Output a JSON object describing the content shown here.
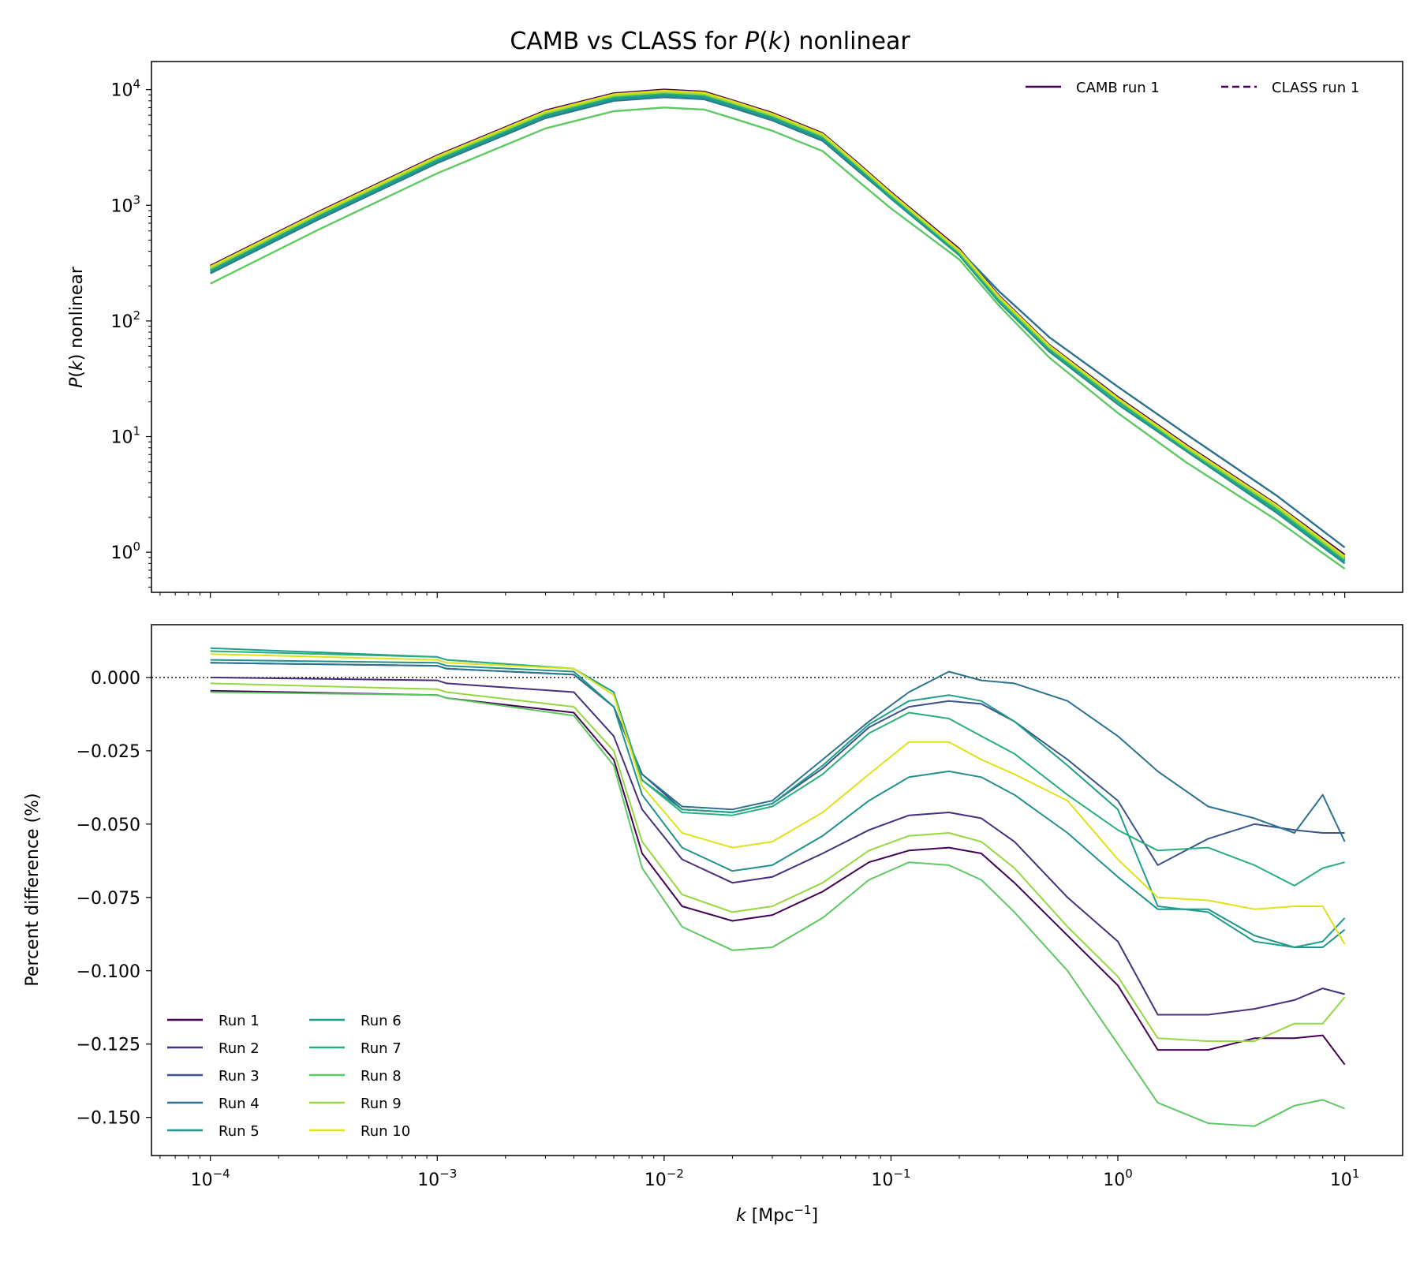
{
  "figure": {
    "title": "CAMB vs CLASS for P(k) nonlinear",
    "title_parts": {
      "a": "CAMB vs CLASS for ",
      "b": "P",
      "c": "(",
      "d": "k",
      "e": ") nonlinear"
    }
  },
  "colors": {
    "run1": "#440154",
    "run2": "#472f7d",
    "run3": "#3b528b",
    "run4": "#2c728e",
    "run5": "#21918c",
    "run6": "#1f9e89",
    "run7": "#28ae80",
    "run8": "#5ec962",
    "run9": "#95d840",
    "run10": "#dde318",
    "zero_line": "#000000"
  },
  "chart_data": [
    {
      "type": "line",
      "panel": "top",
      "ylabel": "P(k) nonlinear",
      "xscale": "log",
      "yscale": "log",
      "xlim": [
        5.5e-05,
        18
      ],
      "ylim": [
        0.45,
        17500
      ],
      "x_ticks": [
        "10^-4",
        "10^-3",
        "10^-2",
        "10^-1",
        "10^0",
        "10^1"
      ],
      "y_ticks": [
        "10^0",
        "10^1",
        "10^2",
        "10^3",
        "10^4"
      ],
      "legend": {
        "placement": "top-right",
        "entries": [
          {
            "label": "CAMB run 1",
            "style": "solid"
          },
          {
            "label": "CLASS run 1",
            "style": "dashed"
          }
        ]
      },
      "x": [
        0.0001,
        0.0003,
        0.001,
        0.003,
        0.006,
        0.01,
        0.015,
        0.02,
        0.03,
        0.05,
        0.07,
        0.1,
        0.2,
        0.3,
        0.5,
        1,
        2,
        5,
        10
      ],
      "series": [
        {
          "name": "Run 1",
          "scale": 1.0,
          "y": [
            300,
            880,
            2700,
            6600,
            9300,
            10000,
            9600,
            8100,
            6300,
            4200,
            2400,
            1300,
            420,
            165,
            62,
            22,
            8.5,
            2.6,
            0.95
          ]
        },
        {
          "name": "Run 2",
          "scale": 0.96,
          "y": [
            288,
            845,
            2590,
            6340,
            8930,
            9600,
            9220,
            7780,
            6050,
            4030,
            2300,
            1250,
            400,
            160,
            60,
            21,
            8.2,
            2.5,
            0.9
          ]
        },
        {
          "name": "Run 3",
          "scale": 0.92,
          "y": [
            276,
            810,
            2480,
            6070,
            8560,
            9200,
            8830,
            7450,
            5800,
            3860,
            2210,
            1200,
            390,
            155,
            58,
            21,
            8.0,
            2.4,
            0.87
          ]
        },
        {
          "name": "Run 4",
          "scale": 0.86,
          "y": [
            258,
            757,
            2320,
            5680,
            8000,
            8600,
            8260,
            6970,
            5420,
            3610,
            2060,
            1150,
            410,
            180,
            72,
            27,
            10.5,
            3.1,
            1.1
          ]
        },
        {
          "name": "Run 5",
          "scale": 0.88,
          "y": [
            264,
            774,
            2380,
            5810,
            8180,
            8800,
            8450,
            7130,
            5540,
            3700,
            2110,
            1140,
            370,
            145,
            54,
            19,
            7.5,
            2.2,
            0.8
          ]
        },
        {
          "name": "Run 6",
          "scale": 0.9,
          "y": [
            270,
            792,
            2430,
            5940,
            8370,
            9000,
            8640,
            7290,
            5670,
            3780,
            2160,
            1170,
            378,
            148,
            56,
            20,
            7.7,
            2.3,
            0.83
          ]
        },
        {
          "name": "Run 7",
          "scale": 0.93,
          "y": [
            279,
            818,
            2510,
            6140,
            8650,
            9300,
            8930,
            7530,
            5860,
            3900,
            2230,
            1210,
            385,
            150,
            57,
            20,
            7.8,
            2.35,
            0.85
          ]
        },
        {
          "name": "Run 8",
          "scale": 0.7,
          "y": [
            210,
            616,
            1890,
            4620,
            6510,
            7000,
            6720,
            5670,
            4410,
            2940,
            1680,
            940,
            340,
            135,
            48,
            16,
            6.0,
            1.9,
            0.72
          ]
        },
        {
          "name": "Run 9",
          "scale": 0.95,
          "y": [
            285,
            836,
            2570,
            6270,
            8840,
            9500,
            9120,
            7700,
            5990,
            3990,
            2280,
            1240,
            395,
            157,
            59,
            21,
            8.0,
            2.45,
            0.88
          ]
        },
        {
          "name": "Run 10",
          "scale": 0.98,
          "y": [
            294,
            862,
            2650,
            6470,
            9110,
            9800,
            9410,
            7940,
            6170,
            4120,
            2350,
            1270,
            408,
            162,
            61,
            21.5,
            8.3,
            2.55,
            0.92
          ]
        }
      ]
    },
    {
      "type": "line",
      "panel": "bottom",
      "xlabel": "k [Mpc^-1]",
      "xlabel_parts": {
        "k": "k",
        "unit": "[Mpc",
        "sup": "−1",
        "close": "]"
      },
      "ylabel": "Percent difference (%)",
      "xscale": "log",
      "xlim": [
        5.5e-05,
        18
      ],
      "ylim": [
        -0.163,
        0.018
      ],
      "y_ticks": [
        "0.000",
        "−0.025",
        "−0.050",
        "−0.075",
        "−0.100",
        "−0.125",
        "−0.150"
      ],
      "x_ticks": [
        "10^-4",
        "10^-3",
        "10^-2",
        "10^-1",
        "10^0",
        "10^1"
      ],
      "reference_line": {
        "y": 0.0,
        "style": "dotted"
      },
      "legend": {
        "placement": "lower-left",
        "columns": 2
      },
      "x": [
        0.0001,
        0.001,
        0.0011,
        0.004,
        0.006,
        0.008,
        0.012,
        0.02,
        0.03,
        0.05,
        0.08,
        0.12,
        0.18,
        0.25,
        0.35,
        0.6,
        1.0,
        1.5,
        2.5,
        4,
        6,
        8,
        10
      ],
      "series": [
        {
          "name": "Run 1",
          "y": [
            -0.0045,
            -0.006,
            -0.007,
            -0.012,
            -0.028,
            -0.06,
            -0.078,
            -0.083,
            -0.081,
            -0.073,
            -0.063,
            -0.059,
            -0.058,
            -0.06,
            -0.07,
            -0.088,
            -0.105,
            -0.127,
            -0.127,
            -0.123,
            -0.123,
            -0.122,
            -0.132
          ]
        },
        {
          "name": "Run 2",
          "y": [
            0.0,
            -0.001,
            -0.002,
            -0.005,
            -0.02,
            -0.045,
            -0.062,
            -0.07,
            -0.068,
            -0.06,
            -0.052,
            -0.047,
            -0.046,
            -0.048,
            -0.056,
            -0.075,
            -0.09,
            -0.115,
            -0.115,
            -0.113,
            -0.11,
            -0.106,
            -0.108
          ]
        },
        {
          "name": "Run 3",
          "y": [
            0.005,
            0.004,
            0.003,
            0.001,
            -0.01,
            -0.033,
            -0.045,
            -0.046,
            -0.043,
            -0.031,
            -0.017,
            -0.01,
            -0.008,
            -0.009,
            -0.015,
            -0.028,
            -0.042,
            -0.064,
            -0.055,
            -0.05,
            -0.052,
            -0.053,
            -0.053
          ]
        },
        {
          "name": "Run 4",
          "y": [
            0.005,
            0.004,
            0.003,
            0.001,
            -0.01,
            -0.033,
            -0.044,
            -0.045,
            -0.042,
            -0.028,
            -0.015,
            -0.005,
            0.002,
            -0.001,
            -0.002,
            -0.008,
            -0.02,
            -0.032,
            -0.044,
            -0.048,
            -0.053,
            -0.04,
            -0.056
          ]
        },
        {
          "name": "Run 5",
          "y": [
            0.006,
            0.005,
            0.004,
            0.002,
            -0.01,
            -0.04,
            -0.058,
            -0.066,
            -0.064,
            -0.054,
            -0.042,
            -0.034,
            -0.032,
            -0.034,
            -0.04,
            -0.053,
            -0.068,
            -0.079,
            -0.079,
            -0.088,
            -0.092,
            -0.092,
            -0.086
          ]
        },
        {
          "name": "Run 6",
          "y": [
            0.01,
            0.007,
            0.006,
            0.003,
            -0.005,
            -0.035,
            -0.045,
            -0.046,
            -0.043,
            -0.03,
            -0.016,
            -0.008,
            -0.006,
            -0.008,
            -0.015,
            -0.03,
            -0.045,
            -0.078,
            -0.08,
            -0.09,
            -0.092,
            -0.09,
            -0.082
          ]
        },
        {
          "name": "Run 7",
          "y": [
            0.009,
            0.007,
            0.006,
            0.003,
            -0.006,
            -0.035,
            -0.046,
            -0.047,
            -0.044,
            -0.033,
            -0.019,
            -0.012,
            -0.014,
            -0.02,
            -0.026,
            -0.04,
            -0.052,
            -0.059,
            -0.058,
            -0.064,
            -0.071,
            -0.065,
            -0.063
          ]
        },
        {
          "name": "Run 8",
          "y": [
            -0.005,
            -0.006,
            -0.007,
            -0.013,
            -0.03,
            -0.065,
            -0.085,
            -0.093,
            -0.092,
            -0.082,
            -0.069,
            -0.063,
            -0.064,
            -0.069,
            -0.08,
            -0.1,
            -0.125,
            -0.145,
            -0.152,
            -0.153,
            -0.146,
            -0.144,
            -0.147
          ]
        },
        {
          "name": "Run 9",
          "y": [
            -0.002,
            -0.004,
            -0.005,
            -0.01,
            -0.025,
            -0.056,
            -0.074,
            -0.08,
            -0.078,
            -0.07,
            -0.059,
            -0.054,
            -0.053,
            -0.056,
            -0.065,
            -0.085,
            -0.102,
            -0.123,
            -0.124,
            -0.124,
            -0.118,
            -0.118,
            -0.109
          ]
        },
        {
          "name": "Run 10",
          "y": [
            0.008,
            0.006,
            0.005,
            0.003,
            -0.006,
            -0.037,
            -0.053,
            -0.058,
            -0.056,
            -0.046,
            -0.033,
            -0.022,
            -0.022,
            -0.028,
            -0.033,
            -0.042,
            -0.062,
            -0.075,
            -0.076,
            -0.079,
            -0.078,
            -0.078,
            -0.091
          ]
        }
      ]
    }
  ]
}
